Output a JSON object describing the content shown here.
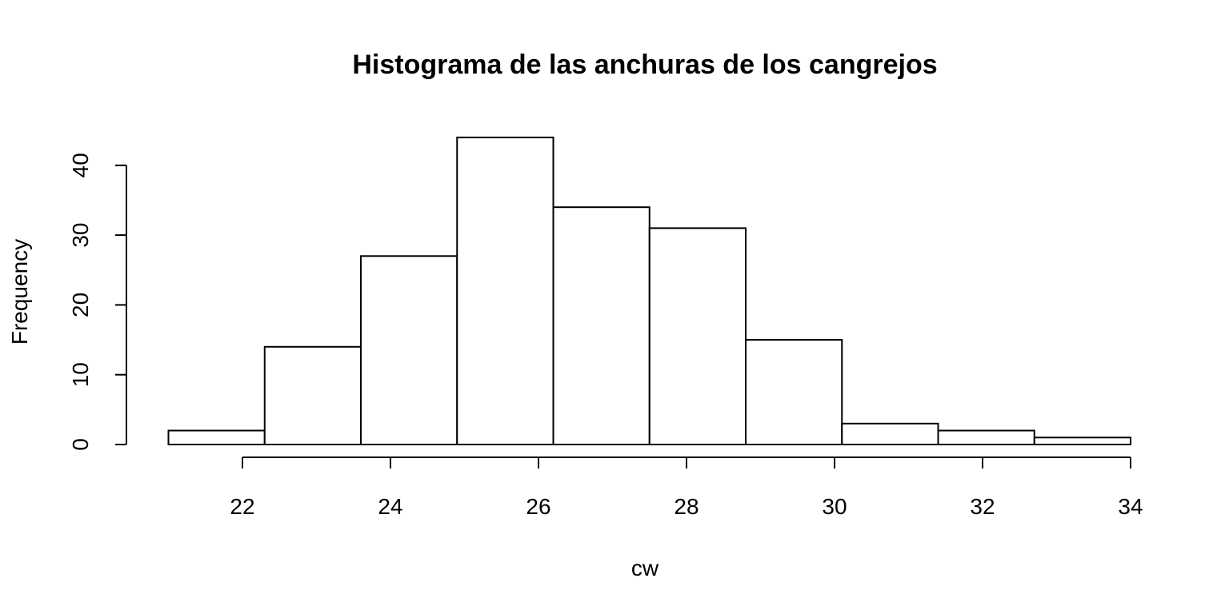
{
  "chart_data": {
    "type": "bar",
    "title": "Histograma de las anchuras de los cangrejos",
    "xlabel": "cw",
    "ylabel": "Frequency",
    "bins": [
      {
        "start": 21.0,
        "end": 22.3,
        "count": 2
      },
      {
        "start": 22.3,
        "end": 23.6,
        "count": 14
      },
      {
        "start": 23.6,
        "end": 24.9,
        "count": 27
      },
      {
        "start": 24.9,
        "end": 26.2,
        "count": 44
      },
      {
        "start": 26.2,
        "end": 27.5,
        "count": 34
      },
      {
        "start": 27.5,
        "end": 28.8,
        "count": 31
      },
      {
        "start": 28.8,
        "end": 30.1,
        "count": 15
      },
      {
        "start": 30.1,
        "end": 31.4,
        "count": 3
      },
      {
        "start": 31.4,
        "end": 32.7,
        "count": 2
      },
      {
        "start": 32.7,
        "end": 34.0,
        "count": 1
      }
    ],
    "xticks": [
      22,
      24,
      26,
      28,
      30,
      32,
      34
    ],
    "yticks": [
      0,
      10,
      20,
      30,
      40
    ],
    "xlim": [
      22,
      34
    ],
    "ylim": [
      0,
      40
    ],
    "grid": false,
    "bar_fill": "#ffffff",
    "bar_stroke": "#000000"
  }
}
